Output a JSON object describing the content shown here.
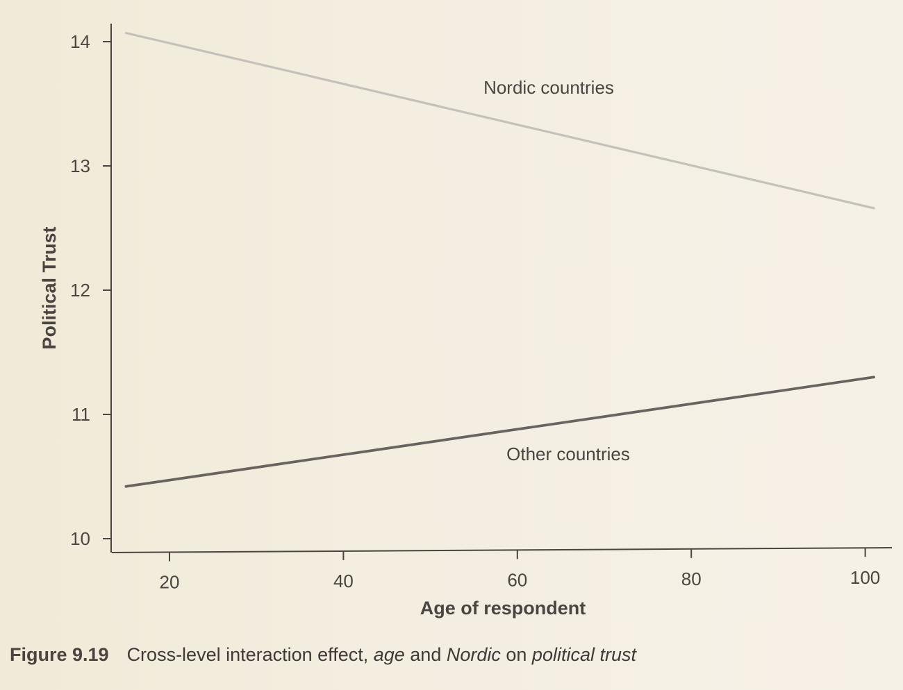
{
  "caption": {
    "number": "Figure 9.19",
    "text_1": "Cross-level interaction effect, ",
    "age": "age",
    "text_2": " and ",
    "nordic": "Nordic",
    "text_3": " on ",
    "trust": "political trust"
  },
  "chart_data": {
    "type": "line",
    "title": "",
    "xlabel": "Age of respondent",
    "ylabel": "Political Trust",
    "x": [
      15,
      101
    ],
    "xlim": [
      15,
      101
    ],
    "ylim": [
      10,
      14
    ],
    "xticks": [
      20,
      40,
      60,
      80,
      100
    ],
    "yticks": [
      10,
      11,
      12,
      13,
      14
    ],
    "grid": false,
    "legend": "none",
    "series": [
      {
        "name": "Nordic countries",
        "values": [
          14.07,
          12.66
        ],
        "color": "#c3c1ba"
      },
      {
        "name": "Other countries",
        "values": [
          10.42,
          11.3
        ],
        "color": "#6a6460"
      }
    ]
  }
}
